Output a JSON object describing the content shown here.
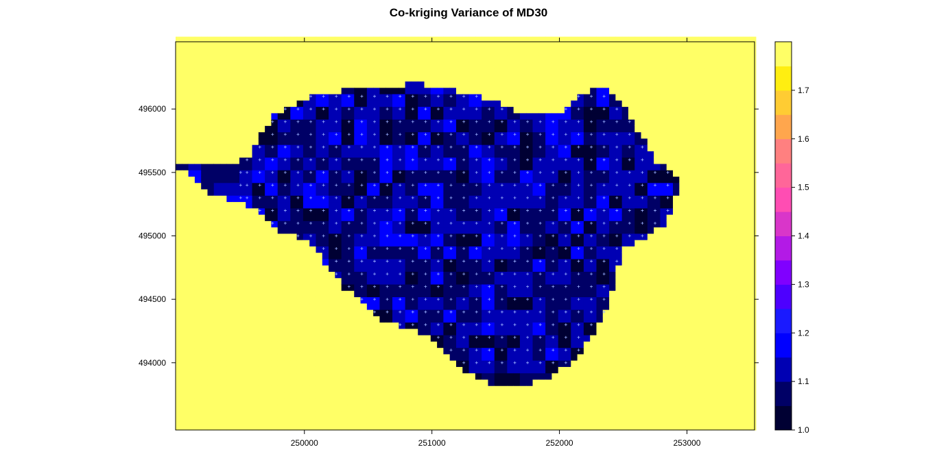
{
  "chart_data": {
    "type": "heatmap",
    "title": "Co-kriging Variance of MD30",
    "xlabel": "",
    "ylabel": "",
    "xlim": [
      248990,
      253530
    ],
    "ylim": [
      493470,
      496530
    ],
    "x_ticks": [
      250000,
      251000,
      252000,
      253000
    ],
    "x_tick_labels": [
      "250000",
      "251000",
      "252000",
      "253000"
    ],
    "y_ticks": [
      494000,
      494500,
      495000,
      495500,
      496000
    ],
    "y_tick_labels": [
      "494000",
      "494500",
      "495000",
      "495500",
      "496000"
    ],
    "colorbar": {
      "breaks": [
        1.0,
        1.05,
        1.1,
        1.15,
        1.2,
        1.25,
        1.3,
        1.35,
        1.4,
        1.45,
        1.5,
        1.55,
        1.6,
        1.65,
        1.7,
        1.75,
        1.8
      ],
      "tick_values": [
        1.0,
        1.1,
        1.2,
        1.3,
        1.4,
        1.5,
        1.6,
        1.7
      ],
      "tick_labels": [
        "1.0",
        "1.1",
        "1.2",
        "1.3",
        "1.4",
        "1.5",
        "1.6",
        "1.7"
      ],
      "colors": [
        "#000033",
        "#000066",
        "#0000b3",
        "#0000ff",
        "#1a1aff",
        "#4d00ff",
        "#8000ff",
        "#b31ae6",
        "#d936c9",
        "#ff4db3",
        "#ff6699",
        "#ff8080",
        "#ffa64d",
        "#ffcc33",
        "#ffee11",
        "#ffff66"
      ]
    },
    "grid": false,
    "legend": "right",
    "sample_points_marker": "+",
    "sample_point_color": "#9ab0ff",
    "sample_region_outline_x": [
      249000,
      249550,
      249750,
      250050,
      250500,
      250900,
      251400,
      251750,
      252000,
      252150,
      252300,
      252500,
      252750,
      252950,
      252850,
      252500,
      252350,
      252150,
      251850,
      251500,
      251250,
      251000,
      250600,
      250300,
      250050,
      249800,
      249550,
      249250,
      249000
    ],
    "sample_region_outline_y": [
      495550,
      495600,
      495950,
      496100,
      496180,
      496200,
      496100,
      495950,
      495950,
      496100,
      496200,
      496050,
      495600,
      495450,
      495100,
      494900,
      494350,
      494050,
      493850,
      493800,
      493950,
      494200,
      494350,
      494600,
      494950,
      495050,
      495250,
      495350,
      495550
    ],
    "sample_points_x": [
      249500,
      249550,
      249650,
      249750,
      249850,
      249950,
      250050,
      250150,
      250250,
      250350,
      250450,
      250550,
      250650,
      250750,
      250850,
      250950,
      251050,
      251150,
      251250,
      251350,
      251450,
      251550,
      251650,
      251750,
      251850,
      251950,
      252050,
      252150,
      252250,
      252350,
      252450,
      252550,
      252650,
      252750,
      252850
    ],
    "sample_points_y": [
      494000,
      494100,
      494200,
      494300,
      494400,
      494500,
      494600,
      494700,
      494800,
      494900,
      495000,
      495100,
      495200,
      495300,
      495400,
      495500,
      495600,
      495700,
      495800,
      495900,
      496000,
      496100
    ]
  }
}
